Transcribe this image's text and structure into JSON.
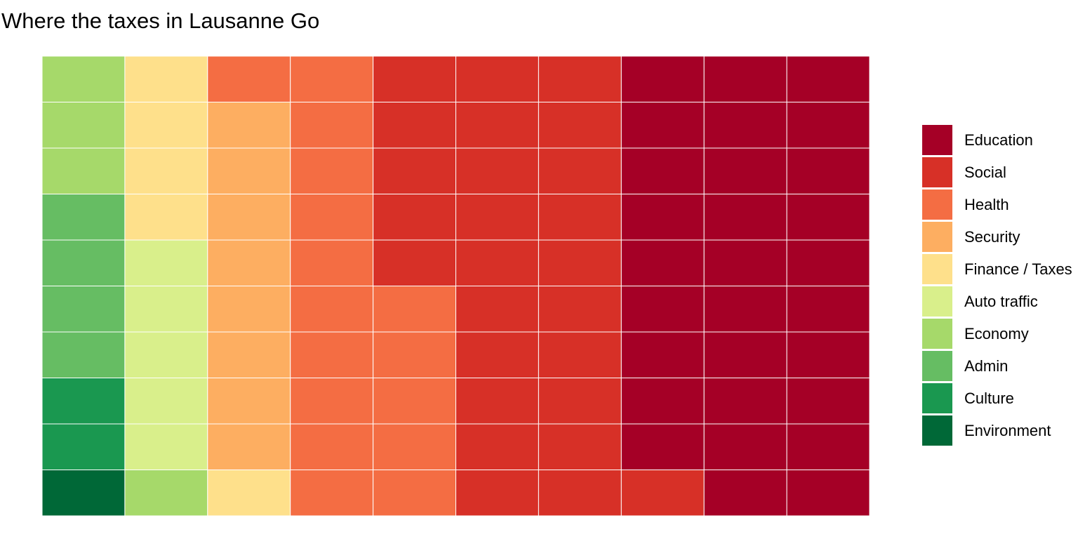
{
  "title": "Where the taxes in Lausanne Go",
  "chart_data": {
    "type": "waffle",
    "title": "Where the taxes in Lausanne Go",
    "rows": 10,
    "cols": 10,
    "fill_order": "column-major, bottom-to-top, left-to-right",
    "categories": [
      "Environment",
      "Culture",
      "Admin",
      "Economy",
      "Auto traffic",
      "Finance / Taxes",
      "Security",
      "Health",
      "Social",
      "Education"
    ],
    "values": [
      1,
      2,
      4,
      4,
      5,
      5,
      8,
      16,
      26,
      29
    ],
    "colors": {
      "Environment": "#006837",
      "Culture": "#1a9850",
      "Admin": "#66bd63",
      "Economy": "#a6d96a",
      "Auto traffic": "#d9ef8b",
      "Finance / Taxes": "#fee08b",
      "Security": "#fdae61",
      "Health": "#f46d43",
      "Social": "#d73027",
      "Education": "#a50026"
    },
    "legend": {
      "position": "right",
      "entries": [
        "Education",
        "Social",
        "Health",
        "Security",
        "Finance / Taxes",
        "Auto traffic",
        "Economy",
        "Admin",
        "Culture",
        "Environment"
      ]
    },
    "grid_lines": "white",
    "axes": "none"
  }
}
